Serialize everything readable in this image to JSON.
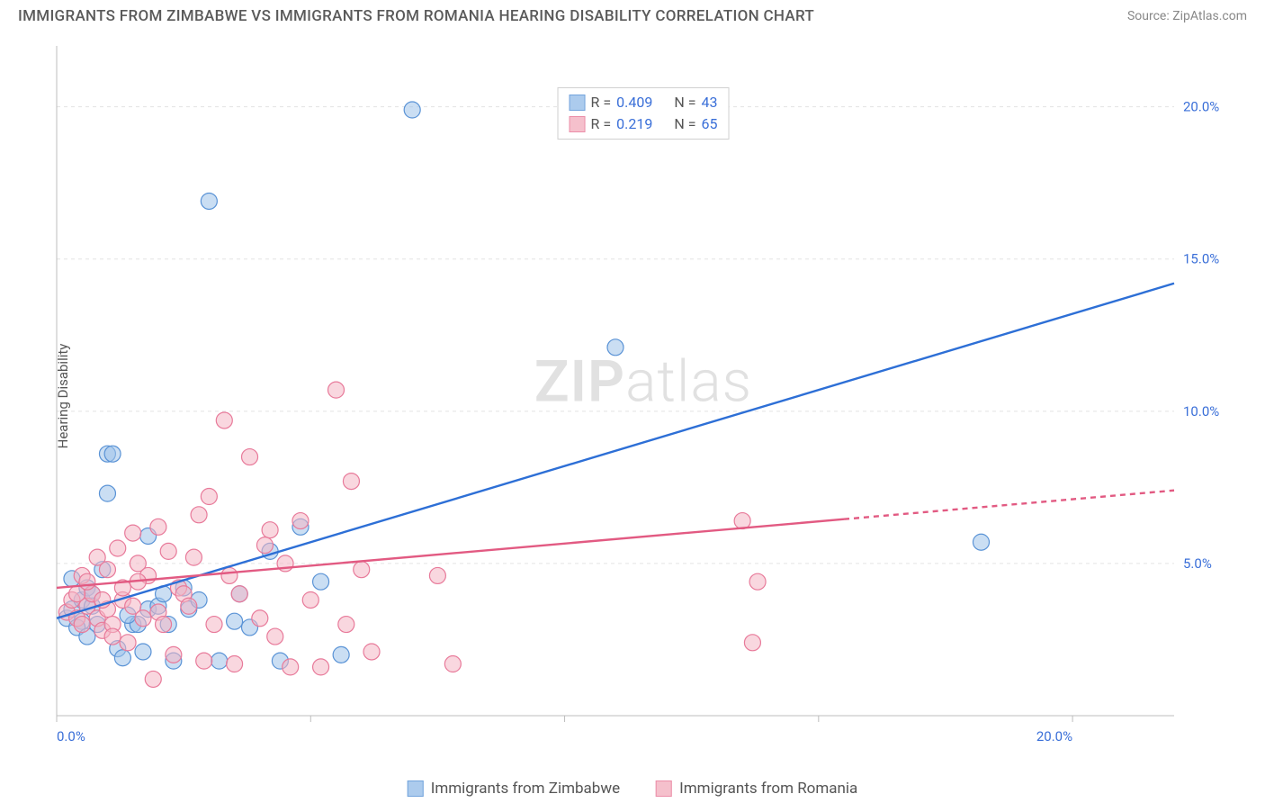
{
  "title": "IMMIGRANTS FROM ZIMBABWE VS IMMIGRANTS FROM ROMANIA HEARING DISABILITY CORRELATION CHART",
  "source": "Source: ZipAtlas.com",
  "watermark_a": "ZIP",
  "watermark_b": "atlas",
  "ylabel": "Hearing Disability",
  "chart": {
    "type": "scatter-with-trend",
    "background_color": "#ffffff",
    "grid_color": "#e3e3e3",
    "axis_color": "#bdbdbd",
    "xlim": [
      0,
      22
    ],
    "ylim": [
      0,
      22
    ],
    "xticks": [
      0,
      5,
      10,
      15,
      20
    ],
    "yticks": [
      5,
      10,
      15,
      20
    ],
    "xtick_labels": [
      "0.0%",
      "",
      "",
      "",
      "20.0%"
    ],
    "ytick_labels": [
      "5.0%",
      "10.0%",
      "15.0%",
      "20.0%"
    ],
    "tick_label_color": "#3a6fd8",
    "tick_label_fontsize": 15,
    "marker_radius": 9,
    "marker_stroke_width": 1.2,
    "trend_line_width": 2.4,
    "series": [
      {
        "key": "zim",
        "label": "Immigrants from Zimbabwe",
        "fill": "#9ec3ea",
        "fill_opacity": 0.55,
        "stroke": "#5a93d6",
        "line_color": "#2d6fd6",
        "R": "0.409",
        "N": "43",
        "trend": {
          "x1": 0,
          "y1": 3.2,
          "x2": 22,
          "y2": 14.2,
          "solid_until_x": 22
        },
        "points": [
          [
            0.2,
            3.2
          ],
          [
            0.3,
            3.5
          ],
          [
            0.5,
            3.1
          ],
          [
            0.5,
            3.8
          ],
          [
            0.6,
            4.2
          ],
          [
            0.7,
            3.6
          ],
          [
            0.8,
            3.0
          ],
          [
            1.0,
            8.6
          ],
          [
            1.1,
            8.6
          ],
          [
            1.0,
            7.3
          ],
          [
            1.2,
            2.2
          ],
          [
            1.3,
            1.9
          ],
          [
            1.5,
            3.0
          ],
          [
            1.6,
            3.0
          ],
          [
            1.8,
            3.5
          ],
          [
            1.8,
            5.9
          ],
          [
            2.0,
            3.6
          ],
          [
            2.2,
            3.0
          ],
          [
            2.3,
            1.8
          ],
          [
            2.5,
            4.2
          ],
          [
            2.6,
            3.5
          ],
          [
            3.0,
            16.9
          ],
          [
            3.2,
            1.8
          ],
          [
            3.5,
            3.1
          ],
          [
            3.8,
            2.9
          ],
          [
            4.2,
            5.4
          ],
          [
            4.4,
            1.8
          ],
          [
            4.8,
            6.2
          ],
          [
            5.2,
            4.4
          ],
          [
            5.6,
            2.0
          ],
          [
            7.0,
            19.9
          ],
          [
            11.0,
            12.1
          ],
          [
            18.2,
            5.7
          ],
          [
            0.4,
            2.9
          ],
          [
            0.6,
            2.6
          ],
          [
            0.9,
            4.8
          ],
          [
            1.4,
            3.3
          ],
          [
            1.7,
            2.1
          ],
          [
            2.1,
            4.0
          ],
          [
            2.8,
            3.8
          ],
          [
            3.6,
            4.0
          ],
          [
            0.3,
            4.5
          ],
          [
            0.7,
            4.0
          ]
        ]
      },
      {
        "key": "rom",
        "label": "Immigrants from Romania",
        "fill": "#f4b6c4",
        "fill_opacity": 0.55,
        "stroke": "#e87a9a",
        "line_color": "#e25a82",
        "R": "0.219",
        "N": "65",
        "trend": {
          "x1": 0,
          "y1": 4.2,
          "x2": 22,
          "y2": 7.4,
          "solid_until_x": 15.5
        },
        "points": [
          [
            0.2,
            3.4
          ],
          [
            0.3,
            3.8
          ],
          [
            0.4,
            3.2
          ],
          [
            0.5,
            4.6
          ],
          [
            0.5,
            3.0
          ],
          [
            0.6,
            3.6
          ],
          [
            0.7,
            4.0
          ],
          [
            0.8,
            3.2
          ],
          [
            0.8,
            5.2
          ],
          [
            0.9,
            2.8
          ],
          [
            1.0,
            3.5
          ],
          [
            1.0,
            4.8
          ],
          [
            1.1,
            3.0
          ],
          [
            1.2,
            5.5
          ],
          [
            1.3,
            3.8
          ],
          [
            1.4,
            2.4
          ],
          [
            1.5,
            6.0
          ],
          [
            1.5,
            3.6
          ],
          [
            1.6,
            5.0
          ],
          [
            1.7,
            3.2
          ],
          [
            1.8,
            4.6
          ],
          [
            1.9,
            1.2
          ],
          [
            2.0,
            6.2
          ],
          [
            2.0,
            3.4
          ],
          [
            2.2,
            5.4
          ],
          [
            2.3,
            2.0
          ],
          [
            2.4,
            4.2
          ],
          [
            2.5,
            4.0
          ],
          [
            2.6,
            3.6
          ],
          [
            2.8,
            6.6
          ],
          [
            2.9,
            1.8
          ],
          [
            3.0,
            7.2
          ],
          [
            3.1,
            3.0
          ],
          [
            3.3,
            9.7
          ],
          [
            3.5,
            1.7
          ],
          [
            3.6,
            4.0
          ],
          [
            3.8,
            8.5
          ],
          [
            4.0,
            3.2
          ],
          [
            4.2,
            6.1
          ],
          [
            4.3,
            2.6
          ],
          [
            4.5,
            5.0
          ],
          [
            4.6,
            1.6
          ],
          [
            4.8,
            6.4
          ],
          [
            5.0,
            3.8
          ],
          [
            5.2,
            1.6
          ],
          [
            5.5,
            10.7
          ],
          [
            5.7,
            3.0
          ],
          [
            5.8,
            7.7
          ],
          [
            6.0,
            4.8
          ],
          [
            6.2,
            2.1
          ],
          [
            7.5,
            4.6
          ],
          [
            7.8,
            1.7
          ],
          [
            13.5,
            6.4
          ],
          [
            13.8,
            4.4
          ],
          [
            13.7,
            2.4
          ],
          [
            0.4,
            4.0
          ],
          [
            0.6,
            4.4
          ],
          [
            1.1,
            2.6
          ],
          [
            1.6,
            4.4
          ],
          [
            2.1,
            3.0
          ],
          [
            2.7,
            5.2
          ],
          [
            3.4,
            4.6
          ],
          [
            4.1,
            5.6
          ],
          [
            0.9,
            3.8
          ],
          [
            1.3,
            4.2
          ]
        ]
      }
    ]
  },
  "stat_legend_prefix_R": "R =",
  "stat_legend_prefix_N": "N ="
}
